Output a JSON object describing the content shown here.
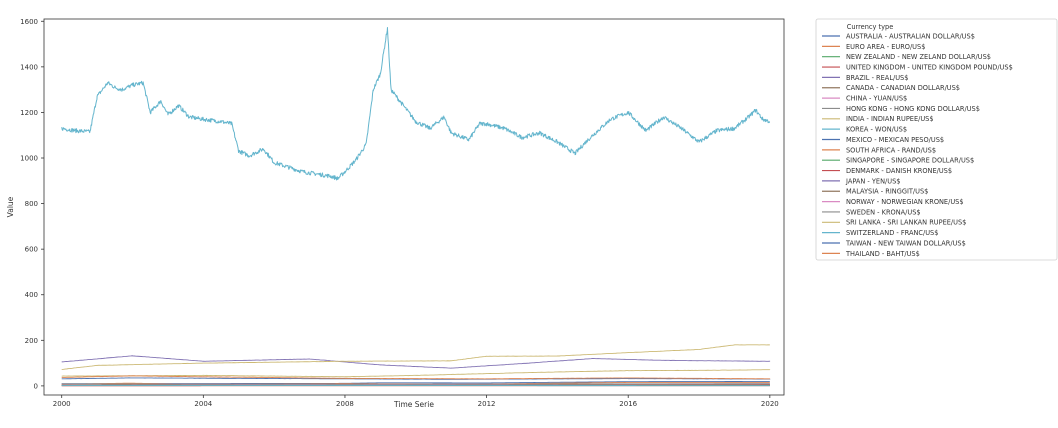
{
  "chart_data": {
    "type": "line",
    "title": "",
    "xlabel": "Time Serie",
    "ylabel": "Value",
    "xlim": [
      1999.5,
      2020.4
    ],
    "ylim": [
      -40,
      1610
    ],
    "x_ticks": [
      2000,
      2004,
      2008,
      2012,
      2016,
      2020
    ],
    "x_tick_labels": [
      "2000",
      "2004",
      "2008",
      "2012",
      "2016",
      "2020"
    ],
    "y_ticks": [
      0,
      200,
      400,
      600,
      800,
      1000,
      1200,
      1400,
      1600
    ],
    "y_tick_labels": [
      "0",
      "200",
      "400",
      "600",
      "800",
      "1000",
      "1200",
      "1400",
      "1600"
    ],
    "grid": false,
    "legend": {
      "title": "Currency type",
      "placement": "outside-right"
    },
    "series": [
      {
        "name": "AUSTRALIA - AUSTRALIAN DOLLAR/US$",
        "color": "#4c72b0",
        "points": [
          [
            2000,
            1.6
          ],
          [
            2020,
            1.45
          ]
        ]
      },
      {
        "name": "EURO AREA - EURO/US$",
        "color": "#dd8452",
        "points": [
          [
            2000,
            1.0
          ],
          [
            2020,
            0.9
          ]
        ]
      },
      {
        "name": "NEW ZEALAND - NEW ZELAND DOLLAR/US$",
        "color": "#55a868",
        "points": [
          [
            2000,
            2.0
          ],
          [
            2020,
            1.5
          ]
        ]
      },
      {
        "name": "UNITED KINGDOM - UNITED KINGDOM POUND/US$",
        "color": "#c44e52",
        "points": [
          [
            2000,
            0.63
          ],
          [
            2020,
            0.77
          ]
        ]
      },
      {
        "name": "BRAZIL - REAL/US$",
        "color": "#8172b3",
        "points": [
          [
            2000,
            1.8
          ],
          [
            2020,
            4.0
          ]
        ]
      },
      {
        "name": "CANADA - CANADIAN DOLLAR/US$",
        "color": "#937860",
        "points": [
          [
            2000,
            1.45
          ],
          [
            2020,
            1.33
          ]
        ]
      },
      {
        "name": "CHINA - YUAN/US$",
        "color": "#da8bc3",
        "points": [
          [
            2000,
            8.28
          ],
          [
            2020,
            7.0
          ]
        ]
      },
      {
        "name": "HONG KONG - HONG KONG DOLLAR/US$",
        "color": "#8c8c8c",
        "points": [
          [
            2000,
            7.8
          ],
          [
            2020,
            7.8
          ]
        ]
      },
      {
        "name": "INDIA - INDIAN RUPEE/US$",
        "color": "#ccb974",
        "points": [
          [
            2000,
            43
          ],
          [
            2004,
            46
          ],
          [
            2008,
            40
          ],
          [
            2010,
            46
          ],
          [
            2012,
            54
          ],
          [
            2014,
            61
          ],
          [
            2016,
            67
          ],
          [
            2018,
            68
          ],
          [
            2020,
            71
          ]
        ]
      },
      {
        "name": "KOREA - WON/US$",
        "color": "#64b5cd",
        "points": [
          [
            2000,
            1130
          ],
          [
            2000.4,
            1120
          ],
          [
            2000.8,
            1115
          ],
          [
            2001.0,
            1270
          ],
          [
            2001.3,
            1330
          ],
          [
            2001.5,
            1310
          ],
          [
            2001.7,
            1300
          ],
          [
            2002.0,
            1320
          ],
          [
            2002.3,
            1330
          ],
          [
            2002.5,
            1200
          ],
          [
            2002.8,
            1250
          ],
          [
            2003.0,
            1190
          ],
          [
            2003.3,
            1230
          ],
          [
            2003.6,
            1180
          ],
          [
            2004.0,
            1170
          ],
          [
            2004.5,
            1160
          ],
          [
            2004.8,
            1150
          ],
          [
            2005.0,
            1030
          ],
          [
            2005.3,
            1010
          ],
          [
            2005.7,
            1040
          ],
          [
            2006.0,
            980
          ],
          [
            2006.4,
            960
          ],
          [
            2006.8,
            940
          ],
          [
            2007.2,
            930
          ],
          [
            2007.6,
            920
          ],
          [
            2007.8,
            910
          ],
          [
            2008.0,
            940
          ],
          [
            2008.3,
            990
          ],
          [
            2008.6,
            1060
          ],
          [
            2008.8,
            1300
          ],
          [
            2009.0,
            1370
          ],
          [
            2009.2,
            1570
          ],
          [
            2009.3,
            1300
          ],
          [
            2009.6,
            1240
          ],
          [
            2010.0,
            1160
          ],
          [
            2010.4,
            1130
          ],
          [
            2010.8,
            1180
          ],
          [
            2011.0,
            1110
          ],
          [
            2011.5,
            1080
          ],
          [
            2011.8,
            1150
          ],
          [
            2012.0,
            1150
          ],
          [
            2012.5,
            1130
          ],
          [
            2013.0,
            1090
          ],
          [
            2013.5,
            1110
          ],
          [
            2014.0,
            1070
          ],
          [
            2014.5,
            1020
          ],
          [
            2014.8,
            1070
          ],
          [
            2015.0,
            1100
          ],
          [
            2015.5,
            1170
          ],
          [
            2016.0,
            1200
          ],
          [
            2016.5,
            1120
          ],
          [
            2017.0,
            1180
          ],
          [
            2017.5,
            1130
          ],
          [
            2018.0,
            1070
          ],
          [
            2018.5,
            1120
          ],
          [
            2019.0,
            1130
          ],
          [
            2019.4,
            1180
          ],
          [
            2019.6,
            1210
          ],
          [
            2019.8,
            1170
          ],
          [
            2020.0,
            1160
          ]
        ]
      },
      {
        "name": "MEXICO - MEXICAN PESO/US$",
        "color": "#4c72b0",
        "points": [
          [
            2000,
            9.5
          ],
          [
            2008,
            11
          ],
          [
            2009,
            13.5
          ],
          [
            2012,
            13
          ],
          [
            2016,
            18.5
          ],
          [
            2020,
            19.5
          ]
        ]
      },
      {
        "name": "SOUTH AFRICA - RAND/US$",
        "color": "#dd8452",
        "points": [
          [
            2000,
            7
          ],
          [
            2001.9,
            12
          ],
          [
            2004,
            6.5
          ],
          [
            2008,
            9.5
          ],
          [
            2011,
            7
          ],
          [
            2016,
            15
          ],
          [
            2020,
            15
          ]
        ]
      },
      {
        "name": "SINGAPORE - SINGAPORE DOLLAR/US$",
        "color": "#55a868",
        "points": [
          [
            2000,
            1.7
          ],
          [
            2020,
            1.38
          ]
        ]
      },
      {
        "name": "DENMARK - DANISH KRONE/US$",
        "color": "#c44e52",
        "points": [
          [
            2000,
            8
          ],
          [
            2002,
            8.5
          ],
          [
            2008,
            5
          ],
          [
            2012,
            5.8
          ],
          [
            2016,
            6.8
          ],
          [
            2020,
            6.7
          ]
        ]
      },
      {
        "name": "JAPAN - YEN/US$",
        "color": "#8172b3",
        "points": [
          [
            2000,
            105
          ],
          [
            2002,
            132
          ],
          [
            2004,
            108
          ],
          [
            2007,
            118
          ],
          [
            2009,
            92
          ],
          [
            2011,
            78
          ],
          [
            2013,
            98
          ],
          [
            2015,
            120
          ],
          [
            2017,
            112
          ],
          [
            2020,
            108
          ]
        ]
      },
      {
        "name": "MALAYSIA - RINGGIT/US$",
        "color": "#937860",
        "points": [
          [
            2000,
            3.8
          ],
          [
            2020,
            4.1
          ]
        ]
      },
      {
        "name": "NORWAY - NORWEGIAN KRONE/US$",
        "color": "#da8bc3",
        "points": [
          [
            2000,
            8.5
          ],
          [
            2008,
            5.5
          ],
          [
            2016,
            8.5
          ],
          [
            2020,
            9.5
          ]
        ]
      },
      {
        "name": "SWEDEN - KRONA/US$",
        "color": "#8c8c8c",
        "points": [
          [
            2000,
            9
          ],
          [
            2008,
            6.5
          ],
          [
            2016,
            9
          ],
          [
            2020,
            9.5
          ]
        ]
      },
      {
        "name": "SRI LANKA - SRI LANKAN RUPEE/US$",
        "color": "#ccb974",
        "points": [
          [
            2000,
            72
          ],
          [
            2001,
            90
          ],
          [
            2004,
            100
          ],
          [
            2008,
            108
          ],
          [
            2011,
            110
          ],
          [
            2012,
            130
          ],
          [
            2014,
            131
          ],
          [
            2016,
            146
          ],
          [
            2018,
            160
          ],
          [
            2019,
            180
          ],
          [
            2020,
            180
          ]
        ]
      },
      {
        "name": "SWITZERLAND - FRANC/US$",
        "color": "#64b5cd",
        "points": [
          [
            2000,
            1.6
          ],
          [
            2020,
            0.98
          ]
        ]
      },
      {
        "name": "TAIWAN - NEW TAIWAN DOLLAR/US$",
        "color": "#4c72b0",
        "points": [
          [
            2000,
            31
          ],
          [
            2002,
            35
          ],
          [
            2008,
            31
          ],
          [
            2011,
            29
          ],
          [
            2016,
            32
          ],
          [
            2020,
            30
          ]
        ]
      },
      {
        "name": "THAILAND - BAHT/US$",
        "color": "#dd8452",
        "points": [
          [
            2000,
            37
          ],
          [
            2002,
            44
          ],
          [
            2004,
            40
          ],
          [
            2008,
            33
          ],
          [
            2012,
            31
          ],
          [
            2016,
            35
          ],
          [
            2020,
            31
          ]
        ]
      }
    ]
  }
}
